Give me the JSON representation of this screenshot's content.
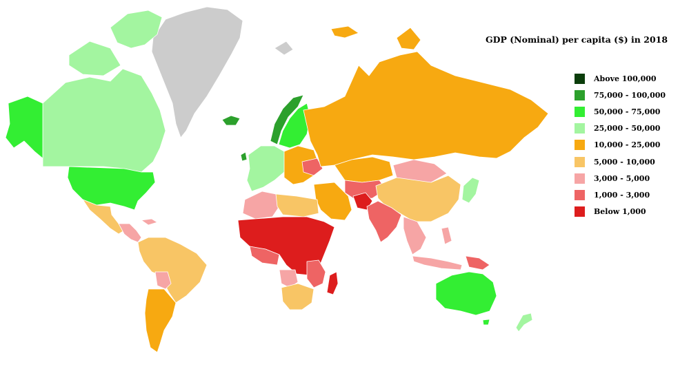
{
  "title": "GDP (Nominal) per capita ($) in 2018",
  "legend": {
    "items": [
      {
        "label": "Above 100,000",
        "color": "#0b3d0b"
      },
      {
        "label": "75,000 - 100,000",
        "color": "#2ca02c"
      },
      {
        "label": "50,000 - 75,000",
        "color": "#33ee33"
      },
      {
        "label": "25,000 - 50,000",
        "color": "#a3f5a0"
      },
      {
        "label": "10,000 - 25,000",
        "color": "#f7a911"
      },
      {
        "label": "5,000 - 10,000",
        "color": "#f8c565"
      },
      {
        "label": "3,000 - 5,000",
        "color": "#f6a5a5"
      },
      {
        "label": "1,000 - 3,000",
        "color": "#ee6464"
      },
      {
        "label": "Below 1,000",
        "color": "#dd1d1d"
      }
    ]
  },
  "colors": {
    "no_data": "#cccccc",
    "background": "#ffffff"
  },
  "regions": {
    "alaska": {
      "category": "50,000 - 75,000"
    },
    "canada": {
      "category": "25,000 - 50,000"
    },
    "greenland": {
      "category": "no data"
    },
    "united_states": {
      "category": "50,000 - 75,000"
    },
    "mexico": {
      "category": "5,000 - 10,000"
    },
    "central_america": {
      "category": "3,000 - 5,000"
    },
    "south_america_north": {
      "category": "5,000 - 10,000"
    },
    "bolivia": {
      "category": "3,000 - 5,000"
    },
    "southern_cone": {
      "category": "10,000 - 25,000"
    },
    "iceland": {
      "category": "75,000 - 100,000"
    },
    "norway": {
      "category": "75,000 - 100,000"
    },
    "sweden_finland": {
      "category": "50,000 - 75,000"
    },
    "western_europe": {
      "category": "25,000 - 50,000"
    },
    "ireland": {
      "category": "75,000 - 100,000"
    },
    "eastern_europe": {
      "category": "10,000 - 25,000"
    },
    "ukraine": {
      "category": "1,000 - 3,000"
    },
    "russia": {
      "category": "10,000 - 25,000"
    },
    "kazakhstan": {
      "category": "10,000 - 25,000"
    },
    "central_asia": {
      "category": "1,000 - 3,000"
    },
    "mongolia": {
      "category": "3,000 - 5,000"
    },
    "china": {
      "category": "5,000 - 10,000"
    },
    "japan_korea": {
      "category": "25,000 - 50,000"
    },
    "middle_east": {
      "category": "10,000 - 25,000"
    },
    "afghanistan": {
      "category": "Below 1,000"
    },
    "south_asia": {
      "category": "1,000 - 3,000"
    },
    "southeast_asia": {
      "category": "3,000 - 5,000"
    },
    "north_africa": {
      "category": "3,000 - 5,000"
    },
    "libya_egypt": {
      "category": "5,000 - 10,000"
    },
    "sahel_central_africa": {
      "category": "Below 1,000"
    },
    "west_coast_africa": {
      "category": "1,000 - 3,000"
    },
    "east_africa": {
      "category": "1,000 - 3,000"
    },
    "southern_africa": {
      "category": "5,000 - 10,000"
    },
    "angola": {
      "category": "3,000 - 5,000"
    },
    "madagascar": {
      "category": "Below 1,000"
    },
    "australia": {
      "category": "50,000 - 75,000"
    },
    "new_zealand": {
      "category": "25,000 - 50,000"
    },
    "indonesia": {
      "category": "3,000 - 5,000"
    },
    "papua": {
      "category": "1,000 - 3,000"
    }
  }
}
